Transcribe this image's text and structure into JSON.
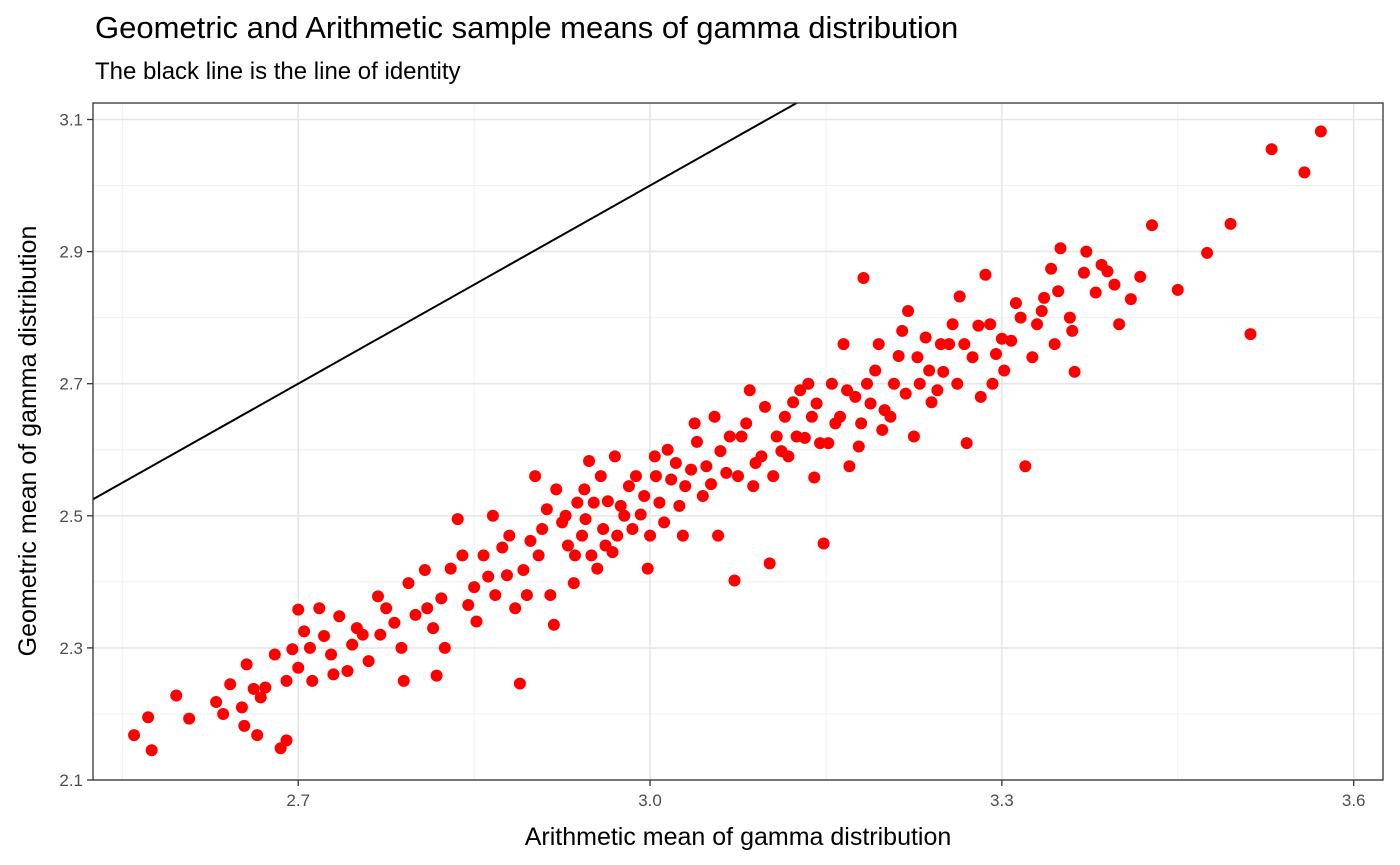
{
  "chart_data": {
    "type": "scatter",
    "title": "Geometric and Arithmetic sample means of gamma distribution",
    "subtitle": "The black line is the line of identity",
    "xlabel": "Arithmetic mean of gamma distribution",
    "ylabel": "Geometric mean of gamma distribution",
    "xlim": [
      2.525,
      3.625
    ],
    "ylim": [
      2.1,
      3.125
    ],
    "xticks": [
      2.7,
      3.0,
      3.3,
      3.6
    ],
    "xtick_labels": [
      "2.7",
      "3.0",
      "3.3",
      "3.6"
    ],
    "yticks": [
      2.1,
      2.3,
      2.5,
      2.7,
      2.9,
      3.1
    ],
    "ytick_labels": [
      "2.1",
      "2.3",
      "2.5",
      "2.7",
      "2.9",
      "3.1"
    ],
    "grid": true,
    "point_color": "#ff0000",
    "reference_line": {
      "label": "line of identity",
      "slope": 1,
      "intercept": 0,
      "color": "#000000"
    },
    "points": [
      [
        2.56,
        2.168
      ],
      [
        2.572,
        2.195
      ],
      [
        2.575,
        2.145
      ],
      [
        2.596,
        2.228
      ],
      [
        2.607,
        2.193
      ],
      [
        2.63,
        2.218
      ],
      [
        2.636,
        2.2
      ],
      [
        2.642,
        2.245
      ],
      [
        2.654,
        2.182
      ],
      [
        2.656,
        2.275
      ],
      [
        2.662,
        2.238
      ],
      [
        2.665,
        2.168
      ],
      [
        2.672,
        2.24
      ],
      [
        2.685,
        2.148
      ],
      [
        2.69,
        2.16
      ],
      [
        2.695,
        2.298
      ],
      [
        2.7,
        2.358
      ],
      [
        2.71,
        2.3
      ],
      [
        2.722,
        2.318
      ],
      [
        2.735,
        2.348
      ],
      [
        2.742,
        2.265
      ],
      [
        2.755,
        2.32
      ],
      [
        2.768,
        2.378
      ],
      [
        2.782,
        2.338
      ],
      [
        2.794,
        2.398
      ],
      [
        2.808,
        2.418
      ],
      [
        2.818,
        2.258
      ],
      [
        2.822,
        2.375
      ],
      [
        2.836,
        2.495
      ],
      [
        2.85,
        2.392
      ],
      [
        2.862,
        2.408
      ],
      [
        2.874,
        2.452
      ],
      [
        2.889,
        2.246
      ],
      [
        2.892,
        2.418
      ],
      [
        2.898,
        2.462
      ],
      [
        2.902,
        2.56
      ],
      [
        2.912,
        2.51
      ],
      [
        2.925,
        2.49
      ],
      [
        2.935,
        2.398
      ],
      [
        2.942,
        2.47
      ],
      [
        2.948,
        2.583
      ],
      [
        2.955,
        2.42
      ],
      [
        2.964,
        2.522
      ],
      [
        2.972,
        2.47
      ],
      [
        2.982,
        2.545
      ],
      [
        2.992,
        2.502
      ],
      [
        3.005,
        2.56
      ],
      [
        3.012,
        2.49
      ],
      [
        3.022,
        2.58
      ],
      [
        3.03,
        2.545
      ],
      [
        3.04,
        2.612
      ],
      [
        3.052,
        2.548
      ],
      [
        3.06,
        2.598
      ],
      [
        3.072,
        2.402
      ],
      [
        3.082,
        2.64
      ],
      [
        3.09,
        2.58
      ],
      [
        3.102,
        2.428
      ],
      [
        3.112,
        2.598
      ],
      [
        3.122,
        2.672
      ],
      [
        3.132,
        2.618
      ],
      [
        3.14,
        2.558
      ],
      [
        3.148,
        2.458
      ],
      [
        3.155,
        2.7
      ],
      [
        3.162,
        2.65
      ],
      [
        3.17,
        2.575
      ],
      [
        3.18,
        2.64
      ],
      [
        3.182,
        2.86
      ],
      [
        3.192,
        2.72
      ],
      [
        3.2,
        2.66
      ],
      [
        3.212,
        2.742
      ],
      [
        3.22,
        2.81
      ],
      [
        3.23,
        2.7
      ],
      [
        3.24,
        2.672
      ],
      [
        3.25,
        2.718
      ],
      [
        3.258,
        2.79
      ],
      [
        3.264,
        2.832
      ],
      [
        3.27,
        2.61
      ],
      [
        3.28,
        2.788
      ],
      [
        3.286,
        2.865
      ],
      [
        3.292,
        2.7
      ],
      [
        3.3,
        2.768
      ],
      [
        3.312,
        2.822
      ],
      [
        3.32,
        2.575
      ],
      [
        3.326,
        2.74
      ],
      [
        3.336,
        2.83
      ],
      [
        3.342,
        2.874
      ],
      [
        3.35,
        2.905
      ],
      [
        3.358,
        2.8
      ],
      [
        3.362,
        2.718
      ],
      [
        3.37,
        2.868
      ],
      [
        3.38,
        2.838
      ],
      [
        3.39,
        2.87
      ],
      [
        3.4,
        2.79
      ],
      [
        3.41,
        2.828
      ],
      [
        3.418,
        2.862
      ],
      [
        3.428,
        2.94
      ],
      [
        3.45,
        2.842
      ],
      [
        3.475,
        2.898
      ],
      [
        3.495,
        2.942
      ],
      [
        3.512,
        2.775
      ],
      [
        3.53,
        3.055
      ],
      [
        3.558,
        3.02
      ],
      [
        3.572,
        3.082
      ],
      [
        2.7,
        2.27
      ],
      [
        2.712,
        2.25
      ],
      [
        2.728,
        2.29
      ],
      [
        2.746,
        2.305
      ],
      [
        2.76,
        2.28
      ],
      [
        2.775,
        2.36
      ],
      [
        2.788,
        2.3
      ],
      [
        2.8,
        2.35
      ],
      [
        2.815,
        2.33
      ],
      [
        2.83,
        2.42
      ],
      [
        2.845,
        2.365
      ],
      [
        2.858,
        2.44
      ],
      [
        2.868,
        2.38
      ],
      [
        2.88,
        2.47
      ],
      [
        2.885,
        2.36
      ],
      [
        2.905,
        2.44
      ],
      [
        2.915,
        2.38
      ],
      [
        2.92,
        2.54
      ],
      [
        2.93,
        2.455
      ],
      [
        2.938,
        2.52
      ],
      [
        2.945,
        2.495
      ],
      [
        2.95,
        2.44
      ],
      [
        2.958,
        2.56
      ],
      [
        2.96,
        2.48
      ],
      [
        2.968,
        2.445
      ],
      [
        2.975,
        2.515
      ],
      [
        2.985,
        2.48
      ],
      [
        2.995,
        2.53
      ],
      [
        3.0,
        2.47
      ],
      [
        3.008,
        2.52
      ],
      [
        3.015,
        2.6
      ],
      [
        3.025,
        2.515
      ],
      [
        3.035,
        2.57
      ],
      [
        3.045,
        2.53
      ],
      [
        3.055,
        2.65
      ],
      [
        3.065,
        2.565
      ],
      [
        3.078,
        2.62
      ],
      [
        3.088,
        2.545
      ],
      [
        3.098,
        2.665
      ],
      [
        3.108,
        2.62
      ],
      [
        3.118,
        2.59
      ],
      [
        3.128,
        2.69
      ],
      [
        3.138,
        2.65
      ],
      [
        3.145,
        2.61
      ],
      [
        3.158,
        2.64
      ],
      [
        3.168,
        2.69
      ],
      [
        3.178,
        2.605
      ],
      [
        3.188,
        2.67
      ],
      [
        3.198,
        2.63
      ],
      [
        3.208,
        2.7
      ],
      [
        3.218,
        2.685
      ],
      [
        3.228,
        2.74
      ],
      [
        3.238,
        2.72
      ],
      [
        3.248,
        2.76
      ],
      [
        3.262,
        2.7
      ],
      [
        3.275,
        2.74
      ],
      [
        3.295,
        2.745
      ],
      [
        3.308,
        2.765
      ],
      [
        3.33,
        2.79
      ],
      [
        3.345,
        2.76
      ],
      [
        2.652,
        2.21
      ],
      [
        2.668,
        2.225
      ],
      [
        2.68,
        2.29
      ],
      [
        2.69,
        2.25
      ],
      [
        2.705,
        2.325
      ],
      [
        2.718,
        2.36
      ],
      [
        2.73,
        2.26
      ],
      [
        2.75,
        2.33
      ],
      [
        2.77,
        2.32
      ],
      [
        2.79,
        2.25
      ],
      [
        2.81,
        2.36
      ],
      [
        2.825,
        2.3
      ],
      [
        2.84,
        2.44
      ],
      [
        2.852,
        2.34
      ],
      [
        2.866,
        2.5
      ],
      [
        2.878,
        2.41
      ],
      [
        2.895,
        2.38
      ],
      [
        2.908,
        2.48
      ],
      [
        2.918,
        2.335
      ],
      [
        2.928,
        2.5
      ],
      [
        2.936,
        2.44
      ],
      [
        2.944,
        2.54
      ],
      [
        2.952,
        2.52
      ],
      [
        2.962,
        2.455
      ],
      [
        2.97,
        2.59
      ],
      [
        2.978,
        2.5
      ],
      [
        2.988,
        2.56
      ],
      [
        2.998,
        2.42
      ],
      [
        3.004,
        2.59
      ],
      [
        3.018,
        2.555
      ],
      [
        3.028,
        2.47
      ],
      [
        3.038,
        2.64
      ],
      [
        3.048,
        2.575
      ],
      [
        3.058,
        2.47
      ],
      [
        3.068,
        2.62
      ],
      [
        3.075,
        2.56
      ],
      [
        3.085,
        2.69
      ],
      [
        3.095,
        2.59
      ],
      [
        3.105,
        2.56
      ],
      [
        3.115,
        2.65
      ],
      [
        3.125,
        2.62
      ],
      [
        3.135,
        2.7
      ],
      [
        3.142,
        2.67
      ],
      [
        3.152,
        2.61
      ],
      [
        3.165,
        2.76
      ],
      [
        3.175,
        2.68
      ],
      [
        3.185,
        2.7
      ],
      [
        3.195,
        2.76
      ],
      [
        3.205,
        2.65
      ],
      [
        3.215,
        2.78
      ],
      [
        3.225,
        2.62
      ],
      [
        3.235,
        2.77
      ],
      [
        3.245,
        2.69
      ],
      [
        3.255,
        2.76
      ],
      [
        3.268,
        2.76
      ],
      [
        3.282,
        2.68
      ],
      [
        3.29,
        2.79
      ],
      [
        3.302,
        2.72
      ],
      [
        3.316,
        2.8
      ],
      [
        3.334,
        2.81
      ],
      [
        3.348,
        2.84
      ],
      [
        3.36,
        2.78
      ],
      [
        3.372,
        2.9
      ],
      [
        3.385,
        2.88
      ],
      [
        3.396,
        2.85
      ]
    ]
  }
}
